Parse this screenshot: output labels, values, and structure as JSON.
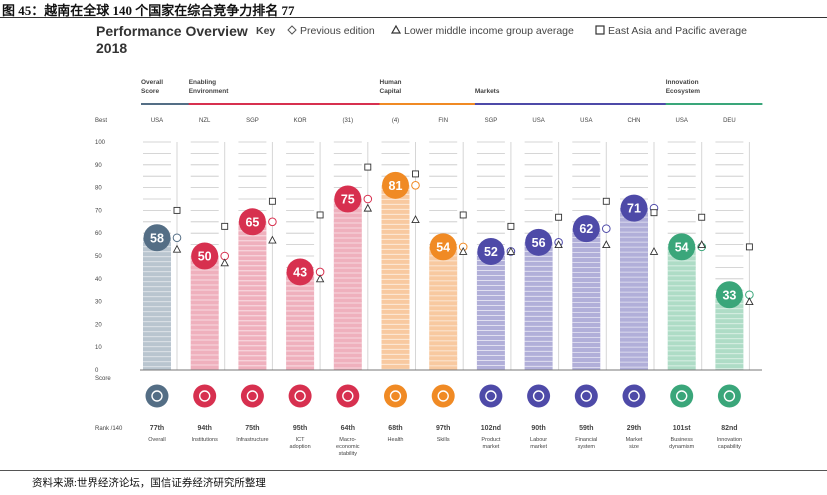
{
  "caption": "图 45：越南在全球 140 个国家在综合竞争力排名 77",
  "source": "资料来源:世界经济论坛，国信证券经济研究所整理",
  "chart_data": {
    "type": "bar",
    "title": "Performance Overview",
    "subtitle": "2018",
    "legend": {
      "title": "Key",
      "items": [
        {
          "symbol": "diamond",
          "label": "Previous edition"
        },
        {
          "symbol": "triangle",
          "label": "Lower middle income group average"
        },
        {
          "symbol": "square",
          "label": "East Asia and Pacific average"
        }
      ]
    },
    "ylabel": "Score",
    "ylim": [
      0,
      100
    ],
    "ytick_labels": [
      "100",
      "90",
      "80",
      "70",
      "60",
      "50",
      "40",
      "30",
      "20",
      "10",
      "0"
    ],
    "best_label": "Best",
    "rank_label": "Rank /140",
    "groups": [
      {
        "name": "Overall Score",
        "start": 0,
        "end": 0
      },
      {
        "name": "Enabling Environment",
        "start": 1,
        "end": 4
      },
      {
        "name": "Human Capital",
        "start": 5,
        "end": 6
      },
      {
        "name": "Markets",
        "start": 7,
        "end": 10
      },
      {
        "name": "Innovation Ecosystem",
        "start": 11,
        "end": 12
      }
    ],
    "pillars": [
      {
        "name": "Overall",
        "best": "USA",
        "score": 58,
        "rank": "77th",
        "previous": 58,
        "lower_middle_avg": 53,
        "east_asia_avg": 70,
        "color": "#546e85",
        "light": "#b9c5cf"
      },
      {
        "name": "Institutions",
        "best": "NZL",
        "score": 50,
        "rank": "94th",
        "previous": 50,
        "lower_middle_avg": 47,
        "east_asia_avg": 63,
        "color": "#d7304f",
        "light": "#efb0bd"
      },
      {
        "name": "Infrastructure",
        "best": "SGP",
        "score": 65,
        "rank": "75th",
        "previous": 65,
        "lower_middle_avg": 57,
        "east_asia_avg": 74,
        "color": "#d7304f",
        "light": "#efb0bd"
      },
      {
        "name": "ICT adoption",
        "best": "KOR",
        "score": 43,
        "rank": "95th",
        "previous": 43,
        "lower_middle_avg": 40,
        "east_asia_avg": 68,
        "color": "#d7304f",
        "light": "#efb0bd"
      },
      {
        "name": "Macro-economic stability",
        "best": "(31)",
        "score": 75,
        "rank": "64th",
        "previous": 75,
        "lower_middle_avg": 71,
        "east_asia_avg": 89,
        "color": "#d7304f",
        "light": "#efb0bd"
      },
      {
        "name": "Health",
        "best": "(4)",
        "score": 81,
        "rank": "68th",
        "previous": 81,
        "lower_middle_avg": 66,
        "east_asia_avg": 86,
        "color": "#f08a24",
        "light": "#f8c9a0"
      },
      {
        "name": "Skills",
        "best": "FIN",
        "score": 54,
        "rank": "97th",
        "previous": 54,
        "lower_middle_avg": 52,
        "east_asia_avg": 68,
        "color": "#f08a24",
        "light": "#f8c9a0"
      },
      {
        "name": "Product market",
        "best": "SGP",
        "score": 52,
        "rank": "102nd",
        "previous": 52,
        "lower_middle_avg": 52,
        "east_asia_avg": 63,
        "color": "#4e4aa8",
        "light": "#b1afd9"
      },
      {
        "name": "Labour market",
        "best": "USA",
        "score": 56,
        "rank": "90th",
        "previous": 56,
        "lower_middle_avg": 55,
        "east_asia_avg": 67,
        "color": "#4e4aa8",
        "light": "#b1afd9"
      },
      {
        "name": "Financial system",
        "best": "USA",
        "score": 62,
        "rank": "59th",
        "previous": 62,
        "lower_middle_avg": 55,
        "east_asia_avg": 74,
        "color": "#4e4aa8",
        "light": "#b1afd9"
      },
      {
        "name": "Market size",
        "best": "CHN",
        "score": 71,
        "rank": "29th",
        "previous": 71,
        "lower_middle_avg": 52,
        "east_asia_avg": 69,
        "color": "#4e4aa8",
        "light": "#b1afd9"
      },
      {
        "name": "Business dynamism",
        "best": "USA",
        "score": 54,
        "rank": "101st",
        "previous": 54,
        "lower_middle_avg": 55,
        "east_asia_avg": 67,
        "color": "#3aa67a",
        "light": "#aedcc6"
      },
      {
        "name": "Innovation capability",
        "best": "DEU",
        "score": 33,
        "rank": "82nd",
        "previous": 33,
        "lower_middle_avg": 30,
        "east_asia_avg": 54,
        "color": "#3aa67a",
        "light": "#aedcc6"
      }
    ],
    "pillar_label_lines": [
      [
        "Overall"
      ],
      [
        "Institutions"
      ],
      [
        "Infrastructure"
      ],
      [
        "ICT",
        "adoption"
      ],
      [
        "Macro-",
        "economic",
        "stability"
      ],
      [
        "Health"
      ],
      [
        "Skills"
      ],
      [
        "Product",
        "market"
      ],
      [
        "Labour",
        "market"
      ],
      [
        "Financial",
        "system"
      ],
      [
        "Market",
        "size"
      ],
      [
        "Business",
        "dynamism"
      ],
      [
        "Innovation",
        "capability"
      ]
    ],
    "group_label_lines": [
      [
        "Overall",
        "Score"
      ],
      [
        "Enabling",
        "Environment"
      ],
      [
        "Human",
        "Capital"
      ],
      [
        "Markets"
      ],
      [
        "Innovation",
        "Ecosystem"
      ]
    ]
  }
}
